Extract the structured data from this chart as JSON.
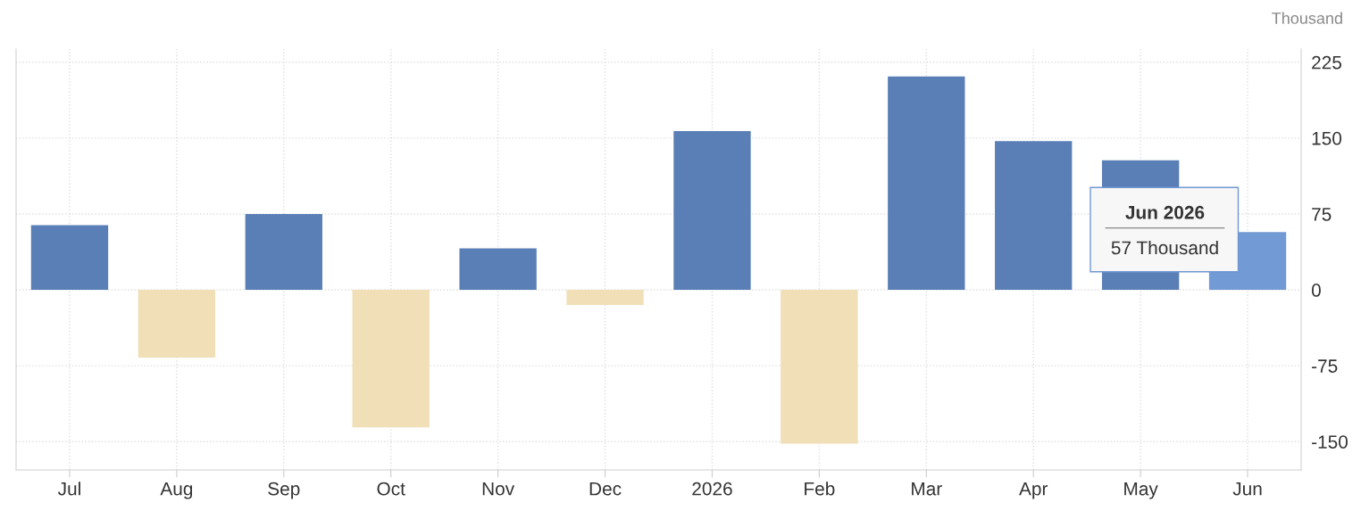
{
  "chart_data": {
    "type": "bar",
    "ylabel": "Thousand",
    "categories": [
      "Jul",
      "Aug",
      "Sep",
      "Oct",
      "Nov",
      "Dec",
      "2026",
      "Feb",
      "Mar",
      "Apr",
      "May",
      "Jun"
    ],
    "values": [
      64,
      -67,
      75,
      -136,
      41,
      -15,
      157,
      -152,
      211,
      147,
      128,
      57
    ],
    "colors": [
      "#5a7fb7",
      "#f0dfb7",
      "#5a7fb7",
      "#f0dfb7",
      "#5a7fb7",
      "#f0dfb7",
      "#5a7fb7",
      "#f0dfb7",
      "#5a7fb7",
      "#5a7fb7",
      "#5a7fb7",
      "#729ad4"
    ],
    "ylim": [
      -178,
      238
    ],
    "yticks": [
      -150,
      -75,
      0,
      75,
      150,
      225
    ],
    "grid": true,
    "legend": false,
    "annotations": [
      "Jun 2026",
      "57 Thousand"
    ]
  }
}
